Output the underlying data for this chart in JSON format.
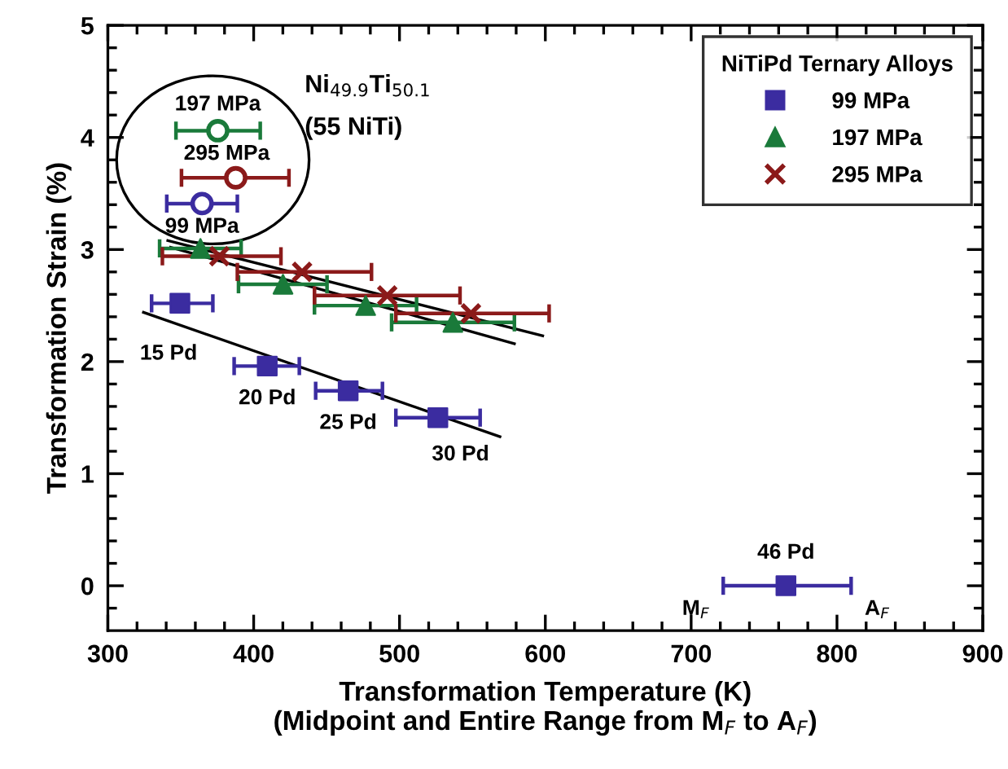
{
  "chart_data": {
    "type": "scatter",
    "xlabel": "Transformation Temperature (K)\n(Midpoint and Entire Range from M$_{F}$ to A$_{F}$)",
    "ylabel": "Transformation Strain (%)",
    "legend_title": "NiTiPd Ternary Alloys",
    "legend": "top right",
    "grid": false,
    "xlim": [
      300,
      900
    ],
    "xticks": [
      300,
      400,
      500,
      600,
      700,
      800,
      900
    ],
    "ylim": [
      -0.4,
      5
    ],
    "yticks": [
      0,
      1,
      2,
      3,
      4,
      5
    ],
    "series": [
      {
        "name": "99 MPa",
        "color": "#3b2ca0",
        "marker": "square",
        "x": [
          349.4,
          409.3,
          464.8,
          526.3,
          765
        ],
        "values": [
          2.52,
          1.96,
          1.74,
          1.5,
          0
        ],
        "xerrors": [
          [
            330,
            372
          ],
          [
            386.6,
            431.3
          ],
          [
            442.5,
            488.3
          ],
          [
            497.5,
            555.3
          ],
          [
            722,
            809.7
          ]
        ]
      },
      {
        "name": "197 MPa",
        "color": "#1a7a3a",
        "marker": "triangle",
        "x": [
          363.5,
          420.1,
          476.8,
          536.6
        ],
        "values": [
          3.01,
          2.69,
          2.5,
          2.35
        ],
        "xerrors": [
          [
            335.5,
            391.4
          ],
          [
            389.6,
            450.3
          ],
          [
            441.7,
            511.7
          ],
          [
            494.6,
            578.8
          ]
        ]
      },
      {
        "name": "295 MPa",
        "color": "#8b1a1a",
        "marker": "cross",
        "x": [
          376.5,
          433.2,
          491.6,
          549
        ],
        "values": [
          2.94,
          2.8,
          2.59,
          2.43
        ],
        "xerrors": [
          [
            337.4,
            418.7
          ],
          [
            388.8,
            480.8
          ],
          [
            441.7,
            541.5
          ],
          [
            497.5,
            602.6
          ]
        ]
      },
      {
        "marker": "circle",
        "colors": [
          "#1a7a3a",
          "#8b1a1a",
          "#3b2ca0"
        ],
        "x": [
          375.4,
          387.7,
          364.6
        ],
        "values": [
          4.06,
          3.64,
          3.41
        ],
        "xerrors": [
          [
            346.7,
            404.5
          ],
          [
            350.5,
            424.2
          ],
          [
            340.4,
            388.8
          ]
        ]
      },
      {
        "type": "line",
        "color": "#000000",
        "x": [
          324.4,
          568.9
        ],
        "values": [
          2.44,
          1.33
        ]
      },
      {
        "type": "line",
        "color": "#000000",
        "x": [
          341.1,
          598.2
        ],
        "values": [
          3.08,
          2.23
        ]
      },
      {
        "type": "line",
        "color": "#000000",
        "x": [
          343,
          578.8
        ],
        "values": [
          3.02,
          2.16
        ]
      }
    ],
    "annotations": [
      {
        "text": "197 MPa",
        "x": 375.4,
        "y": 4.06
      },
      {
        "text": "295 MPa",
        "x": 387.7,
        "y": 3.64
      },
      {
        "text": "99 MPa",
        "x": 364.6,
        "y": 3.41
      },
      {
        "text": "15 Pd",
        "x": 349.4,
        "y": 2.52
      },
      {
        "text": "20 Pd",
        "x": 409.3,
        "y": 1.96
      },
      {
        "text": "25 Pd",
        "x": 464.8,
        "y": 1.74
      },
      {
        "text": "30 Pd",
        "x": 526.3,
        "y": 1.5
      },
      {
        "text": "46 Pd",
        "x": 765,
        "y": 0
      },
      {
        "text": "M$_{F}$",
        "x": 722,
        "y": 0
      },
      {
        "text": "A$_{F}$",
        "x": 809.7,
        "y": 0
      },
      "Ni$_{49.9}$Ti$_{50.1}$",
      "(55 NiTi)"
    ]
  }
}
